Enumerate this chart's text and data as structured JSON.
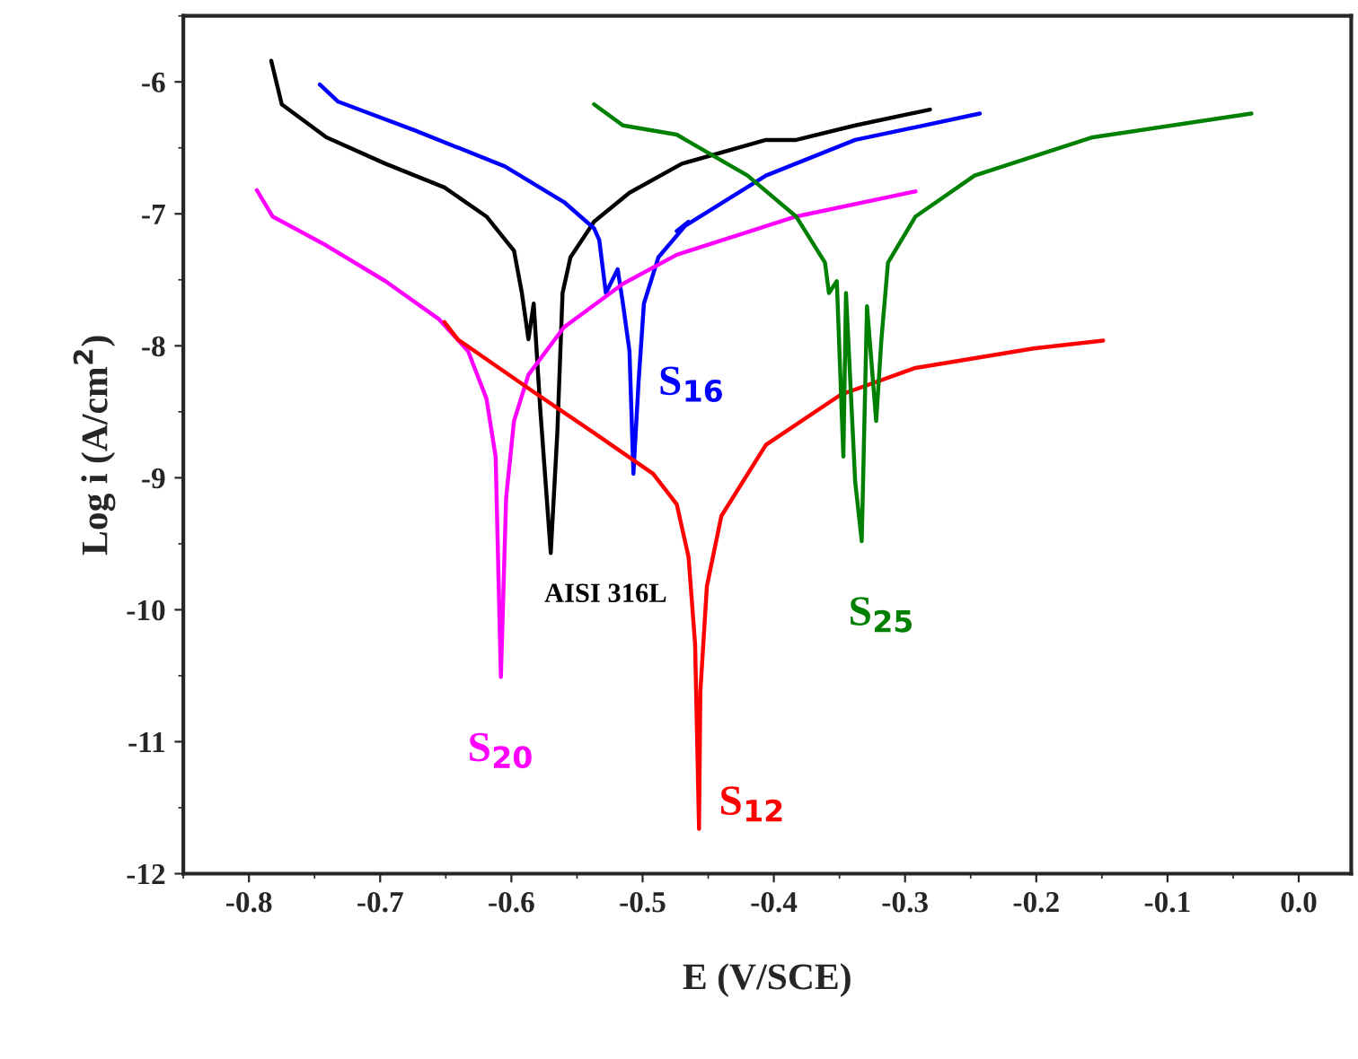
{
  "chart_data": {
    "type": "line",
    "xlabel": "E (V/SCE)",
    "ylabel": "Log i (A/cm$^{2}$)",
    "xlim": [
      -0.85,
      0.04
    ],
    "ylim": [
      -12,
      -5.5
    ],
    "xticks": [
      {
        "value": -0.8,
        "label": "-0.8"
      },
      {
        "value": -0.7,
        "label": "-0.7"
      },
      {
        "value": -0.6,
        "label": "-0.6"
      },
      {
        "value": -0.5,
        "label": "-0.5"
      },
      {
        "value": -0.4,
        "label": "-0.4"
      },
      {
        "value": -0.3,
        "label": "-0.3"
      },
      {
        "value": -0.2,
        "label": "-0.2"
      },
      {
        "value": -0.1,
        "label": "-0.1"
      },
      {
        "value": 0.0,
        "label": "0.0"
      }
    ],
    "yticks": [
      -12,
      -11,
      -10,
      -9,
      -8,
      -7,
      -6
    ],
    "grid": false,
    "legend": false,
    "marker": "none",
    "line_style": "solid",
    "series": [
      {
        "name": "AISI 316L",
        "color": "#000000",
        "x": [
          -0.783,
          -0.775,
          -0.741,
          -0.696,
          -0.651,
          -0.619,
          -0.598,
          -0.592,
          -0.587,
          -0.583,
          -0.578,
          -0.57,
          -0.565,
          -0.561,
          -0.555,
          -0.537,
          -0.51,
          -0.47,
          -0.406,
          -0.383,
          -0.338,
          -0.281
        ],
        "values": [
          -5.84,
          -6.17,
          -6.42,
          -6.62,
          -6.8,
          -7.02,
          -7.28,
          -7.6,
          -7.95,
          -7.68,
          -8.48,
          -9.57,
          -8.66,
          -7.6,
          -7.33,
          -7.06,
          -6.84,
          -6.62,
          -6.44,
          -6.44,
          -6.33,
          -6.21
        ]
      },
      {
        "name": "S$_{16}$",
        "color": "#0000ff",
        "x": [
          -0.746,
          -0.732,
          -0.673,
          -0.605,
          -0.56,
          -0.537,
          -0.533,
          -0.528,
          -0.519,
          -0.515,
          -0.51,
          -0.507,
          -0.503,
          -0.499,
          -0.488,
          -0.465,
          -0.474,
          -0.406,
          -0.338,
          -0.243
        ],
        "values": [
          -6.02,
          -6.15,
          -6.37,
          -6.64,
          -6.91,
          -7.11,
          -7.2,
          -7.6,
          -7.42,
          -7.68,
          -8.04,
          -8.97,
          -8.26,
          -7.68,
          -7.33,
          -7.06,
          -7.13,
          -6.71,
          -6.44,
          -6.24
        ]
      },
      {
        "name": "S$_{20}$",
        "color": "#ff00ff",
        "x": [
          -0.794,
          -0.782,
          -0.741,
          -0.696,
          -0.655,
          -0.633,
          -0.619,
          -0.612,
          -0.608,
          -0.604,
          -0.598,
          -0.587,
          -0.56,
          -0.515,
          -0.474,
          -0.383,
          -0.292
        ],
        "values": [
          -6.82,
          -7.02,
          -7.24,
          -7.51,
          -7.8,
          -8.04,
          -8.4,
          -8.84,
          -10.51,
          -9.15,
          -8.57,
          -8.22,
          -7.86,
          -7.53,
          -7.31,
          -7.02,
          -6.83
        ]
      },
      {
        "name": "S$_{12}$",
        "color": "#ff0000",
        "x": [
          -0.651,
          -0.641,
          -0.583,
          -0.537,
          -0.492,
          -0.474,
          -0.465,
          -0.46,
          -0.457,
          -0.456,
          -0.451,
          -0.44,
          -0.406,
          -0.349,
          -0.293,
          -0.202,
          -0.149
        ],
        "values": [
          -7.82,
          -7.95,
          -8.35,
          -8.66,
          -8.97,
          -9.2,
          -9.6,
          -10.26,
          -11.66,
          -10.62,
          -9.82,
          -9.29,
          -8.75,
          -8.37,
          -8.17,
          -8.02,
          -7.96
        ]
      },
      {
        "name": "S$_{25}$",
        "color": "#008000",
        "x": [
          -0.537,
          -0.515,
          -0.474,
          -0.42,
          -0.383,
          -0.361,
          -0.358,
          -0.352,
          -0.347,
          -0.345,
          -0.338,
          -0.333,
          -0.329,
          -0.322,
          -0.318,
          -0.313,
          -0.292,
          -0.247,
          -0.157,
          -0.036
        ],
        "values": [
          -6.17,
          -6.33,
          -6.4,
          -6.71,
          -7.02,
          -7.37,
          -7.6,
          -7.51,
          -8.84,
          -7.6,
          -9.03,
          -9.48,
          -7.7,
          -8.57,
          -7.95,
          -7.37,
          -7.02,
          -6.71,
          -6.42,
          -6.24
        ]
      }
    ]
  }
}
